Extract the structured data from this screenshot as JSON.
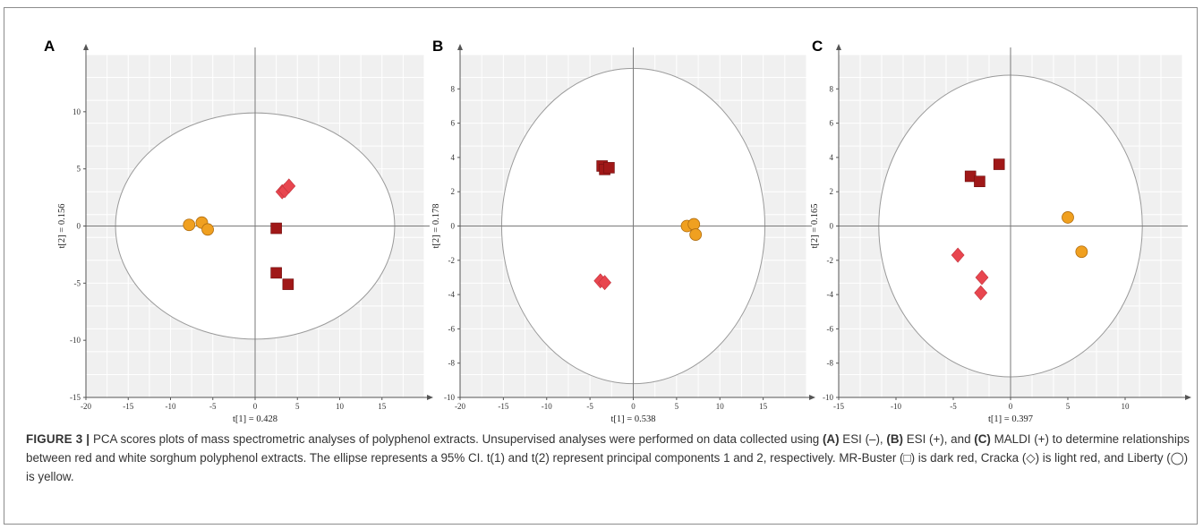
{
  "chart_data": [
    {
      "type": "scatter",
      "panel": "A",
      "xlabel": "t[1] = 0.428",
      "ylabel": "t[2] = 0.156",
      "xlim": [
        -20,
        20
      ],
      "ylim": [
        -15,
        15
      ],
      "xticks": [
        -20,
        -15,
        -10,
        -5,
        0,
        5,
        10,
        15
      ],
      "yticks": [
        -15,
        -10,
        -5,
        0,
        5,
        10
      ],
      "ellipse": {
        "cx": 0,
        "cy": 0,
        "rx": 16.5,
        "ry": 9.9
      },
      "grid": true,
      "series": [
        {
          "marker": "square",
          "color": "#a01818",
          "points": [
            [
              2.5,
              -0.2
            ],
            [
              2.5,
              -4.1
            ],
            [
              3.9,
              -5.1
            ]
          ]
        },
        {
          "marker": "diamond",
          "color": "#e8464f",
          "points": [
            [
              3.2,
              3.0
            ],
            [
              3.5,
              3.1
            ],
            [
              4.0,
              3.5
            ]
          ]
        },
        {
          "marker": "circle",
          "color": "#f0a020",
          "points": [
            [
              -7.8,
              0.1
            ],
            [
              -6.3,
              0.3
            ],
            [
              -5.6,
              -0.3
            ]
          ]
        }
      ]
    },
    {
      "type": "scatter",
      "panel": "B",
      "xlabel": "t[1] = 0.538",
      "ylabel": "t[2] = 0.178",
      "xlim": [
        -20,
        20
      ],
      "ylim": [
        -10,
        10
      ],
      "xticks": [
        -20,
        -15,
        -10,
        -5,
        0,
        5,
        10,
        15
      ],
      "yticks": [
        -10,
        -8,
        -6,
        -4,
        -2,
        0,
        2,
        4,
        6,
        8
      ],
      "ellipse": {
        "cx": 0,
        "cy": 0,
        "rx": 15.2,
        "ry": 9.2
      },
      "grid": true,
      "series": [
        {
          "marker": "square",
          "color": "#a01818",
          "points": [
            [
              -3.6,
              3.5
            ],
            [
              -3.3,
              3.3
            ],
            [
              -2.8,
              3.4
            ]
          ]
        },
        {
          "marker": "diamond",
          "color": "#e8464f",
          "points": [
            [
              -3.8,
              -3.2
            ],
            [
              -3.3,
              -3.3
            ]
          ]
        },
        {
          "marker": "circle",
          "color": "#f0a020",
          "points": [
            [
              6.2,
              0.0
            ],
            [
              7.0,
              0.1
            ],
            [
              7.2,
              -0.5
            ]
          ]
        }
      ]
    },
    {
      "type": "scatter",
      "panel": "C",
      "xlabel": "t[1] = 0.397",
      "ylabel": "t[2] = 0.165",
      "xlim": [
        -15,
        15
      ],
      "ylim": [
        -10,
        10
      ],
      "xticks": [
        -15,
        -10,
        -5,
        0,
        5,
        10
      ],
      "yticks": [
        -10,
        -8,
        -6,
        -4,
        -2,
        0,
        2,
        4,
        6,
        8
      ],
      "ellipse": {
        "cx": 0,
        "cy": 0,
        "rx": 11.5,
        "ry": 8.8
      },
      "grid": true,
      "series": [
        {
          "marker": "square",
          "color": "#a01818",
          "points": [
            [
              -3.5,
              2.9
            ],
            [
              -2.7,
              2.6
            ],
            [
              -1.0,
              3.6
            ]
          ]
        },
        {
          "marker": "diamond",
          "color": "#e8464f",
          "points": [
            [
              -4.6,
              -1.7
            ],
            [
              -2.5,
              -3.0
            ],
            [
              -2.6,
              -3.9
            ]
          ]
        },
        {
          "marker": "circle",
          "color": "#f0a020",
          "points": [
            [
              5.0,
              0.5
            ],
            [
              6.2,
              -1.5
            ]
          ]
        }
      ]
    }
  ],
  "caption": {
    "figure_label": "FIGURE 3 |",
    "text_1": " PCA scores plots of mass spectrometric analyses of polyphenol extracts. Unsupervised analyses were performed on data collected using ",
    "a_label": "(A)",
    "a_text": " ESI (–), ",
    "b_label": "(B)",
    "b_text": " ESI (+), and ",
    "c_label": "(C)",
    "c_text": " MALDI (+) to determine relationships between red and white sorghum polyphenol extracts. The ellipse represents a 95% CI. t(1) and t(2) represent principal components 1 and 2, respectively. MR-Buster (□) is dark red, Cracka (◇) is light red, and Liberty (◯) is yellow."
  }
}
